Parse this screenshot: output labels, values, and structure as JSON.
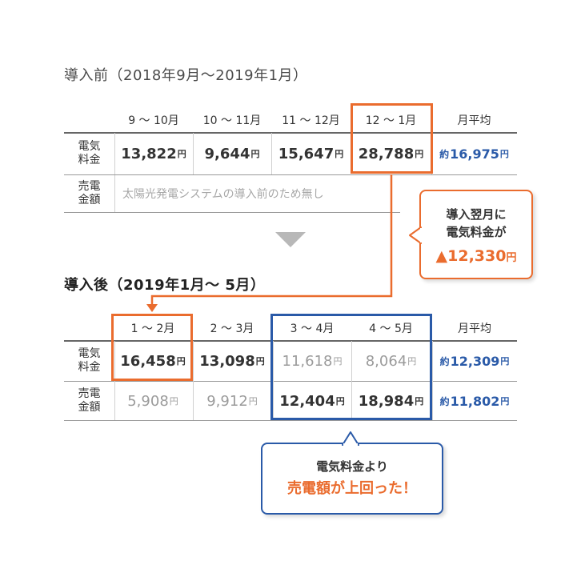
{
  "before": {
    "title": "導入前（2018年9月〜2019年1月）",
    "headers": [
      "9 〜 10月",
      "10 〜 11月",
      "11 〜 12月",
      "12 〜 1月",
      "月平均"
    ],
    "rows": [
      {
        "label_l1": "電気",
        "label_l2": "料金",
        "values": [
          "13,822",
          "9,644",
          "15,647",
          "28,788"
        ],
        "avg_prefix": "約",
        "avg": "16,975"
      },
      {
        "label_l1": "売電",
        "label_l2": "金額",
        "note": "太陽光発電システムの導入前のため無し"
      }
    ]
  },
  "after": {
    "title": "導入後（2019年1月〜 5月）",
    "headers": [
      "1 〜 2月",
      "2 〜 3月",
      "3 〜 4月",
      "4 〜 5月",
      "月平均"
    ],
    "rows": [
      {
        "label_l1": "電気",
        "label_l2": "料金",
        "values": [
          "16,458",
          "13,098",
          "11,618",
          "8,064"
        ],
        "avg_prefix": "約",
        "avg": "12,309"
      },
      {
        "label_l1": "売電",
        "label_l2": "金額",
        "values": [
          "5,908",
          "9,912",
          "12,404",
          "18,984"
        ],
        "avg_prefix": "約",
        "avg": "11,802"
      }
    ]
  },
  "unit": "円",
  "callout_orange": {
    "line1": "導入翌月に",
    "line2": "電気料金が",
    "line3": "▲12,330"
  },
  "callout_blue": {
    "line1": "電気料金より",
    "line2": "売電額が上回った！"
  },
  "colors": {
    "orange": "#ea6c2e",
    "blue": "#2a5aa8",
    "grey_text": "#9b9b9b"
  }
}
